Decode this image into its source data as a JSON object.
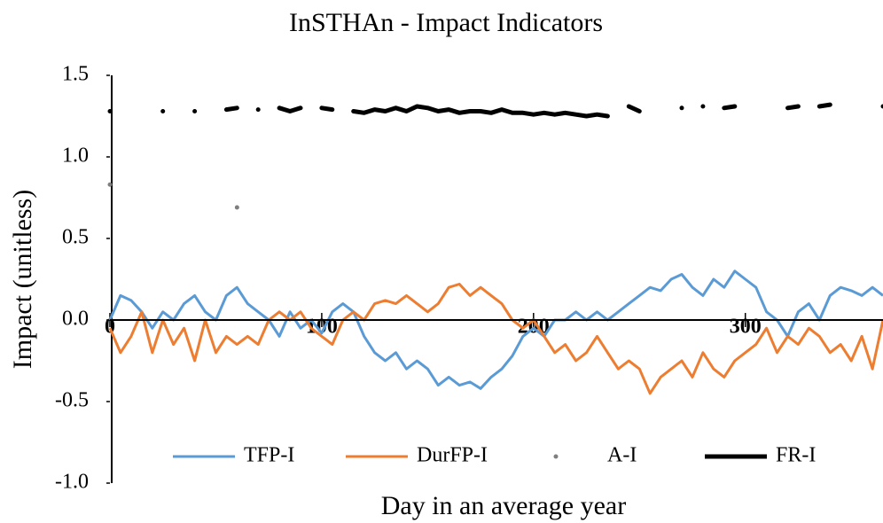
{
  "chart_data": {
    "type": "line",
    "title": "InSTHAn - Impact Indicators",
    "x_label": "Day in an average year",
    "y_label": "Impact (unitless)",
    "xlim": [
      0,
      365
    ],
    "xticks": [
      0,
      100,
      200,
      300
    ],
    "ylim": [
      -1,
      1.5
    ],
    "yticks": [
      1.5,
      {
        "value": 1,
        "label": "1.0"
      },
      0.5,
      {
        "value": 0,
        "label": "0.0"
      },
      -0.5,
      {
        "value": -1,
        "label": "-1.0"
      }
    ],
    "legend": "bottom",
    "x": [
      0,
      5,
      10,
      15,
      20,
      25,
      30,
      35,
      40,
      45,
      50,
      55,
      60,
      65,
      70,
      75,
      80,
      85,
      90,
      95,
      100,
      105,
      110,
      115,
      120,
      125,
      130,
      135,
      140,
      145,
      150,
      155,
      160,
      165,
      170,
      175,
      180,
      185,
      190,
      195,
      200,
      205,
      210,
      215,
      220,
      225,
      230,
      235,
      240,
      245,
      250,
      255,
      260,
      265,
      270,
      275,
      280,
      285,
      290,
      295,
      300,
      305,
      310,
      315,
      320,
      325,
      330,
      335,
      340,
      345,
      350,
      355,
      360,
      365
    ],
    "series": [
      {
        "name": "TFP-I",
        "color": "#5b9bd5",
        "mark": "line",
        "values": [
          0.0,
          0.15,
          0.12,
          0.05,
          -0.05,
          0.05,
          0.0,
          0.1,
          0.15,
          0.05,
          0.0,
          0.15,
          0.2,
          0.1,
          0.05,
          0.0,
          -0.1,
          0.05,
          -0.05,
          0.0,
          -0.08,
          0.05,
          0.1,
          0.05,
          -0.1,
          -0.2,
          -0.25,
          -0.2,
          -0.3,
          -0.25,
          -0.3,
          -0.4,
          -0.35,
          -0.4,
          -0.38,
          -0.42,
          -0.35,
          -0.3,
          -0.22,
          -0.1,
          -0.05,
          -0.1,
          0.0,
          0.0,
          0.05,
          0.0,
          0.05,
          0.0,
          0.05,
          0.1,
          0.15,
          0.2,
          0.18,
          0.25,
          0.28,
          0.2,
          0.15,
          0.25,
          0.2,
          0.3,
          0.25,
          0.2,
          0.05,
          0.0,
          -0.1,
          0.05,
          0.1,
          0.0,
          0.15,
          0.2,
          0.18,
          0.15,
          0.2,
          0.15
        ]
      },
      {
        "name": "DurFP-I",
        "color": "#ed7d31",
        "mark": "line",
        "values": [
          -0.05,
          -0.2,
          -0.1,
          0.05,
          -0.2,
          0.0,
          -0.15,
          -0.05,
          -0.25,
          0.0,
          -0.2,
          -0.1,
          -0.15,
          -0.1,
          -0.15,
          0.0,
          0.05,
          0.0,
          0.05,
          -0.05,
          -0.1,
          -0.15,
          0.0,
          0.05,
          0.0,
          0.1,
          0.12,
          0.1,
          0.15,
          0.1,
          0.05,
          0.1,
          0.2,
          0.22,
          0.15,
          0.2,
          0.15,
          0.1,
          0.0,
          -0.05,
          0.0,
          -0.1,
          -0.2,
          -0.15,
          -0.25,
          -0.2,
          -0.1,
          -0.2,
          -0.3,
          -0.25,
          -0.3,
          -0.45,
          -0.35,
          -0.3,
          -0.25,
          -0.35,
          -0.2,
          -0.3,
          -0.35,
          -0.25,
          -0.2,
          -0.15,
          -0.05,
          -0.2,
          -0.1,
          -0.15,
          -0.05,
          -0.1,
          -0.2,
          -0.15,
          -0.25,
          -0.1,
          -0.3,
          0.0
        ]
      },
      {
        "name": "A-I",
        "color": "#7f7f7f",
        "mark": "dot",
        "values": [
          0.83,
          null,
          null,
          null,
          null,
          null,
          null,
          null,
          null,
          null,
          null,
          null,
          0.69,
          null,
          null,
          null,
          null,
          null,
          null,
          null,
          null,
          null,
          null,
          null,
          null,
          null,
          null,
          null,
          null,
          null,
          null,
          null,
          null,
          null,
          null,
          null,
          null,
          null,
          null,
          null,
          null,
          null,
          null,
          null,
          null,
          null,
          null,
          null,
          null,
          null,
          null,
          null,
          null,
          null,
          null,
          null,
          null,
          null,
          null,
          null,
          null,
          null,
          null,
          null,
          null,
          null,
          null,
          null,
          null,
          null,
          null,
          null,
          null,
          null
        ]
      },
      {
        "name": "FR-I",
        "color": "#000000",
        "mark": "thick",
        "values": [
          1.28,
          null,
          null,
          null,
          null,
          1.28,
          null,
          null,
          1.28,
          null,
          null,
          1.29,
          1.3,
          null,
          1.29,
          null,
          1.3,
          1.28,
          1.3,
          null,
          1.3,
          1.29,
          null,
          1.28,
          1.27,
          1.29,
          1.28,
          1.3,
          1.28,
          1.31,
          1.3,
          1.28,
          1.29,
          1.27,
          1.28,
          1.28,
          1.27,
          1.29,
          1.27,
          1.27,
          1.26,
          1.27,
          1.26,
          1.27,
          1.26,
          1.25,
          1.26,
          1.25,
          null,
          1.31,
          1.28,
          null,
          null,
          null,
          1.3,
          null,
          1.31,
          null,
          1.3,
          1.31,
          null,
          null,
          null,
          null,
          1.3,
          1.31,
          null,
          1.31,
          1.32,
          null,
          null,
          null,
          null,
          1.31
        ]
      }
    ]
  }
}
